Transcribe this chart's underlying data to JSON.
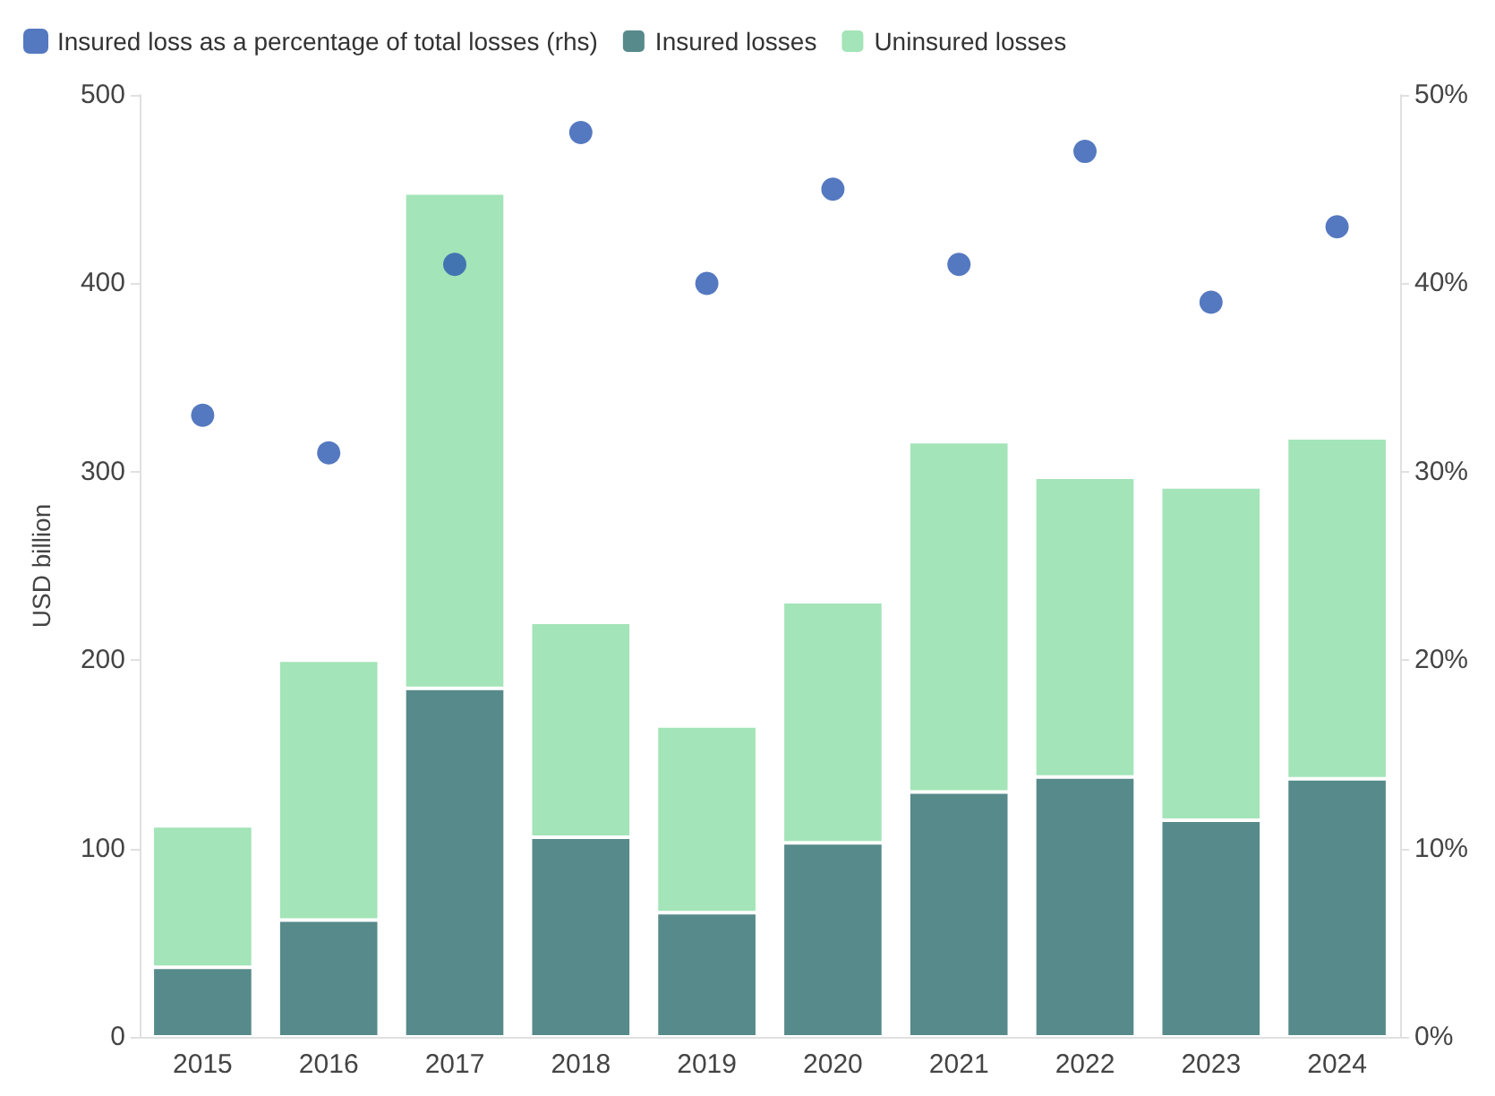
{
  "chart_data": {
    "type": "bar",
    "ylabel": "USD billion",
    "categories": [
      "2015",
      "2016",
      "2017",
      "2018",
      "2019",
      "2020",
      "2021",
      "2022",
      "2023",
      "2024"
    ],
    "stacked": true,
    "series": [
      {
        "name": "Insured loss as a percentage of total losses (rhs)",
        "type": "scatter",
        "axis": "y2",
        "color": "#2b57b0",
        "values": [
          33,
          31,
          41,
          48,
          40,
          45,
          41,
          47,
          39,
          43
        ]
      },
      {
        "name": "Insured losses",
        "color": "#578a8a",
        "values": [
          37,
          62,
          185,
          106,
          66,
          103,
          130,
          138,
          115,
          137
        ]
      },
      {
        "name": "Uninsured losses",
        "color": "#a3e4b8",
        "values": [
          75,
          138,
          263,
          114,
          99,
          128,
          186,
          159,
          177,
          181
        ]
      }
    ],
    "ylim": [
      0,
      500
    ],
    "yticks": [
      0,
      100,
      200,
      300,
      400,
      500
    ],
    "y2lim": [
      0,
      50
    ],
    "y2ticks": [
      {
        "value": 0,
        "label": "0%"
      },
      {
        "value": 10,
        "label": "10%"
      },
      {
        "value": 20,
        "label": "20%"
      },
      {
        "value": 30,
        "label": "30%"
      },
      {
        "value": 40,
        "label": "40%"
      },
      {
        "value": 50,
        "label": "50%"
      }
    ],
    "legend": "top left",
    "marker": "circle",
    "grid": false
  }
}
